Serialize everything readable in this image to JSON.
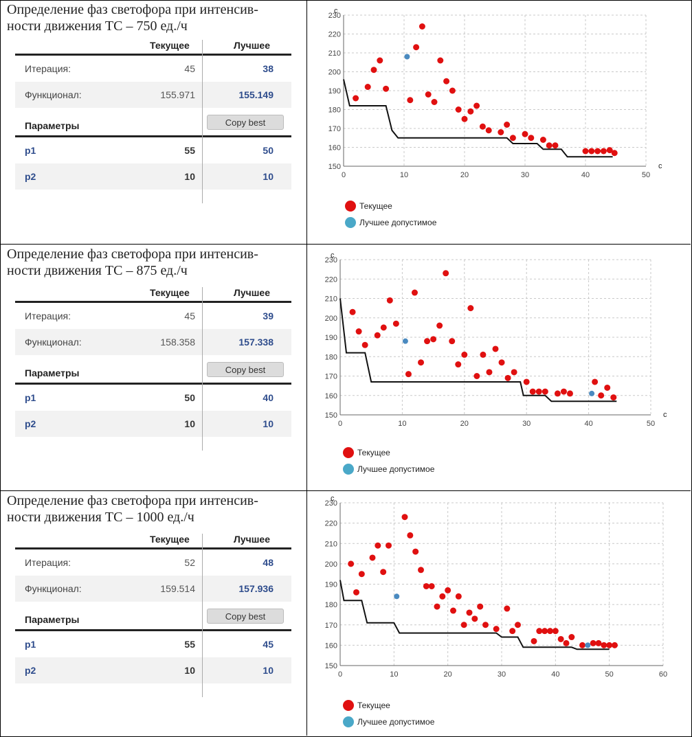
{
  "panels": [
    {
      "title": "Определение фаз светофора при интенсив-ности движения ТС – 750 ед./ч",
      "title_line1": "Определение фаз светофора при интенсив-",
      "title_line2": "ности движения ТС – 750 ед./ч",
      "table": {
        "col_current": "Текущее",
        "col_best": "Лучшее",
        "iteration_label": "Итерация:",
        "iteration_current": "45",
        "iteration_best": "38",
        "functional_label": "Функционал:",
        "functional_current": "155.971",
        "functional_best": "155.149",
        "params_label": "Параметры",
        "copy_button": "Copy best",
        "p1_label": "p1",
        "p1_current": "55",
        "p1_best": "50",
        "p2_label": "p2",
        "p2_current": "10",
        "p2_best": "10"
      }
    },
    {
      "title": "Определение фаз светофора при интенсив-ности движения ТС – 875 ед./ч",
      "title_line1": "Определение фаз светофора при интенсив-",
      "title_line2": "ности движения ТС – 875 ед./ч",
      "table": {
        "col_current": "Текущее",
        "col_best": "Лучшее",
        "iteration_label": "Итерация:",
        "iteration_current": "45",
        "iteration_best": "39",
        "functional_label": "Функционал:",
        "functional_current": "158.358",
        "functional_best": "157.338",
        "params_label": "Параметры",
        "copy_button": "Copy best",
        "p1_label": "p1",
        "p1_current": "50",
        "p1_best": "40",
        "p2_label": "p2",
        "p2_current": "10",
        "p2_best": "10"
      }
    },
    {
      "title": "Определение фаз светофора при интенсив-ности движения ТС – 1000 ед./ч",
      "title_line1": "Определение фаз светофора при интенсив-",
      "title_line2": "ности движения ТС – 1000 ед./ч",
      "table": {
        "col_current": "Текущее",
        "col_best": "Лучшее",
        "iteration_label": "Итерация:",
        "iteration_current": "52",
        "iteration_best": "48",
        "functional_label": "Функционал:",
        "functional_current": "159.514",
        "functional_best": "157.936",
        "params_label": "Параметры",
        "copy_button": "Copy best",
        "p1_label": "p1",
        "p1_current": "55",
        "p1_best": "45",
        "p2_label": "p2",
        "p2_current": "10",
        "p2_best": "10"
      }
    }
  ],
  "colors": {
    "current_dot": "#e01010",
    "best_dot": "#4a8ac0",
    "best_line": "#111111",
    "grid": "#c8c8c8",
    "legend_best": "#4aa8c8"
  },
  "chart_data": [
    {
      "type": "scatter",
      "title": "",
      "xlabel": "с",
      "ylabel": "с",
      "xlim": [
        0,
        50
      ],
      "ylim": [
        150,
        230
      ],
      "x_ticks": [
        0,
        10,
        20,
        30,
        40,
        50
      ],
      "y_ticks": [
        150,
        160,
        170,
        180,
        190,
        200,
        210,
        220,
        230
      ],
      "grid": true,
      "legend_position": "bottom-left",
      "series": [
        {
          "name": "Текущее",
          "kind": "points",
          "points": [
            [
              2,
              186
            ],
            [
              4,
              192
            ],
            [
              5,
              201
            ],
            [
              6,
              206
            ],
            [
              7,
              191
            ],
            [
              11,
              185
            ],
            [
              12,
              213
            ],
            [
              13,
              224
            ],
            [
              14,
              188
            ],
            [
              15,
              184
            ],
            [
              16,
              206
            ],
            [
              17,
              195
            ],
            [
              18,
              190
            ],
            [
              19,
              180
            ],
            [
              20,
              175
            ],
            [
              21,
              179
            ],
            [
              22,
              182
            ],
            [
              23,
              171
            ],
            [
              24,
              169
            ],
            [
              26,
              168
            ],
            [
              27,
              172
            ],
            [
              28,
              165
            ],
            [
              30,
              167
            ],
            [
              31,
              165
            ],
            [
              33,
              164
            ],
            [
              34,
              161
            ],
            [
              35,
              161
            ],
            [
              40,
              158
            ],
            [
              41,
              158
            ],
            [
              42,
              158
            ],
            [
              43,
              158
            ],
            [
              44,
              158.5
            ],
            [
              44.8,
              157
            ]
          ]
        },
        {
          "name": "Лучшее допустимое",
          "kind": "points",
          "points": [
            [
              10.5,
              208
            ]
          ]
        },
        {
          "kind": "step-line",
          "points": [
            [
              0,
              196
            ],
            [
              1,
              182
            ],
            [
              7,
              182
            ],
            [
              8,
              169
            ],
            [
              9,
              165
            ],
            [
              27,
              165
            ],
            [
              28,
              162
            ],
            [
              32,
              162
            ],
            [
              33,
              159
            ],
            [
              36,
              159
            ],
            [
              37,
              155
            ],
            [
              44.5,
              155
            ]
          ]
        }
      ]
    },
    {
      "type": "scatter",
      "title": "",
      "xlabel": "с",
      "ylabel": "с",
      "xlim": [
        0,
        50
      ],
      "ylim": [
        150,
        230
      ],
      "x_ticks": [
        0,
        10,
        20,
        30,
        40,
        50
      ],
      "y_ticks": [
        150,
        160,
        170,
        180,
        190,
        200,
        210,
        220,
        230
      ],
      "grid": true,
      "legend_position": "bottom-left",
      "series": [
        {
          "name": "Текущее",
          "kind": "points",
          "points": [
            [
              2,
              203
            ],
            [
              3,
              193
            ],
            [
              4,
              186
            ],
            [
              6,
              191
            ],
            [
              7,
              195
            ],
            [
              8,
              209
            ],
            [
              9,
              197
            ],
            [
              11,
              171
            ],
            [
              12,
              213
            ],
            [
              13,
              177
            ],
            [
              14,
              188
            ],
            [
              15,
              189
            ],
            [
              16,
              196
            ],
            [
              17,
              223
            ],
            [
              18,
              188
            ],
            [
              19,
              176
            ],
            [
              20,
              181
            ],
            [
              21,
              205
            ],
            [
              22,
              170
            ],
            [
              23,
              181
            ],
            [
              24,
              172
            ],
            [
              25,
              184
            ],
            [
              26,
              177
            ],
            [
              27,
              169
            ],
            [
              28,
              172
            ],
            [
              30,
              167
            ],
            [
              31,
              162
            ],
            [
              32,
              162
            ],
            [
              33,
              162
            ],
            [
              35,
              161
            ],
            [
              36,
              162
            ],
            [
              37,
              161
            ],
            [
              41,
              167
            ],
            [
              42,
              160
            ],
            [
              43,
              164
            ],
            [
              44,
              159
            ]
          ]
        },
        {
          "name": "Лучшее допустимое",
          "kind": "points",
          "points": [
            [
              10.5,
              188
            ],
            [
              40.5,
              161
            ]
          ]
        },
        {
          "kind": "step-line",
          "points": [
            [
              0,
              210
            ],
            [
              1,
              182
            ],
            [
              4,
              182
            ],
            [
              5,
              167
            ],
            [
              29,
              167
            ],
            [
              29.5,
              160
            ],
            [
              33,
              160
            ],
            [
              34,
              157
            ],
            [
              44.5,
              157
            ]
          ]
        }
      ]
    },
    {
      "type": "scatter",
      "title": "",
      "xlabel": "",
      "ylabel": "с",
      "xlim": [
        0,
        60
      ],
      "ylim": [
        150,
        230
      ],
      "x_ticks": [
        0,
        10,
        20,
        30,
        40,
        50,
        60
      ],
      "y_ticks": [
        150,
        160,
        170,
        180,
        190,
        200,
        210,
        220,
        230
      ],
      "grid": true,
      "legend_position": "bottom-left",
      "series": [
        {
          "name": "Текущее",
          "kind": "points",
          "points": [
            [
              2,
              200
            ],
            [
              3,
              186
            ],
            [
              4,
              195
            ],
            [
              6,
              203
            ],
            [
              7,
              209
            ],
            [
              8,
              196
            ],
            [
              9,
              209
            ],
            [
              12,
              223
            ],
            [
              13,
              214
            ],
            [
              14,
              206
            ],
            [
              15,
              197
            ],
            [
              16,
              189
            ],
            [
              17,
              189
            ],
            [
              18,
              179
            ],
            [
              19,
              184
            ],
            [
              20,
              187
            ],
            [
              21,
              177
            ],
            [
              22,
              184
            ],
            [
              23,
              170
            ],
            [
              24,
              176
            ],
            [
              25,
              173
            ],
            [
              26,
              179
            ],
            [
              27,
              170
            ],
            [
              29,
              168
            ],
            [
              31,
              178
            ],
            [
              32,
              167
            ],
            [
              33,
              170
            ],
            [
              36,
              162
            ],
            [
              37,
              167
            ],
            [
              38,
              167
            ],
            [
              39,
              167
            ],
            [
              40,
              167
            ],
            [
              41,
              163
            ],
            [
              42,
              161
            ],
            [
              43,
              164
            ],
            [
              45,
              160
            ],
            [
              47,
              161
            ],
            [
              48,
              161
            ],
            [
              49,
              160
            ],
            [
              50,
              160
            ],
            [
              51,
              160
            ]
          ]
        },
        {
          "name": "Лучшее допустимое",
          "kind": "points",
          "points": [
            [
              10.5,
              184
            ],
            [
              46,
              160
            ]
          ]
        },
        {
          "kind": "step-line",
          "points": [
            [
              0,
              192
            ],
            [
              0.7,
              182
            ],
            [
              4,
              182
            ],
            [
              5,
              171
            ],
            [
              10,
              171
            ],
            [
              11,
              166
            ],
            [
              29,
              166
            ],
            [
              30,
              164
            ],
            [
              33,
              164
            ],
            [
              34,
              159
            ],
            [
              43,
              159
            ],
            [
              44,
              158
            ],
            [
              50,
              158
            ]
          ]
        }
      ]
    }
  ]
}
